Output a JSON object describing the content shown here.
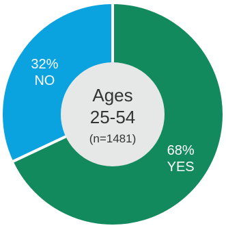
{
  "chart_data": {
    "type": "pie",
    "style": "donut",
    "center_label": {
      "line1": "Ages",
      "line2": "25-54",
      "line3": "(n=1481)"
    },
    "slices": [
      {
        "name": "YES",
        "value": 68,
        "value_label": "68%",
        "color": "#138a5e"
      },
      {
        "name": "NO",
        "value": 32,
        "value_label": "32%",
        "color": "#0aa3e0"
      }
    ],
    "center_color": "#e6e8e8"
  }
}
